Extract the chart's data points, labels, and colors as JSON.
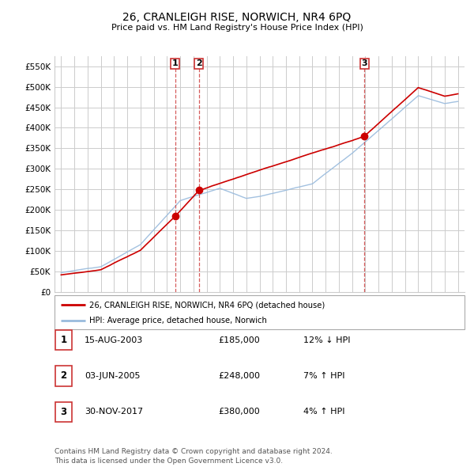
{
  "title": "26, CRANLEIGH RISE, NORWICH, NR4 6PQ",
  "subtitle": "Price paid vs. HM Land Registry's House Price Index (HPI)",
  "legend_line1": "26, CRANLEIGH RISE, NORWICH, NR4 6PQ (detached house)",
  "legend_line2": "HPI: Average price, detached house, Norwich",
  "sales": [
    {
      "label": "1",
      "date": "15-AUG-2003",
      "price": 185000,
      "hpi_rel": "12% ↓ HPI",
      "year": 2003.62
    },
    {
      "label": "2",
      "date": "03-JUN-2005",
      "price": 248000,
      "hpi_rel": "7% ↑ HPI",
      "year": 2005.42
    },
    {
      "label": "3",
      "date": "30-NOV-2017",
      "price": 380000,
      "hpi_rel": "4% ↑ HPI",
      "year": 2017.92
    }
  ],
  "ylim": [
    0,
    575000
  ],
  "yticks": [
    0,
    50000,
    100000,
    150000,
    200000,
    250000,
    300000,
    350000,
    400000,
    450000,
    500000,
    550000
  ],
  "xlim_start": 1994.5,
  "xlim_end": 2025.5,
  "line_color_red": "#cc0000",
  "line_color_blue": "#99bbdd",
  "marker_color": "#cc0000",
  "dashed_color": "#cc3333",
  "background_color": "#ffffff",
  "grid_color": "#cccccc",
  "footer": "Contains HM Land Registry data © Crown copyright and database right 2024.\nThis data is licensed under the Open Government Licence v3.0."
}
